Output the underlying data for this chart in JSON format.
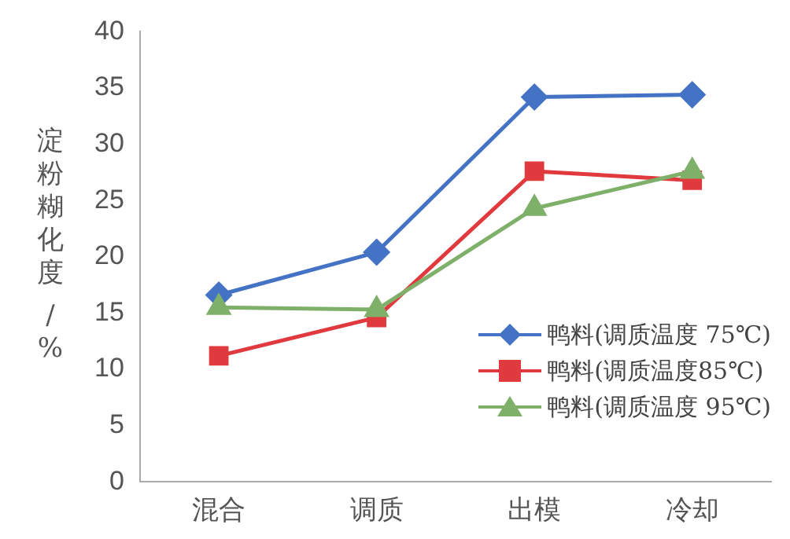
{
  "chart_data": {
    "type": "line",
    "ylabel": "淀粉糊化度 /%",
    "categories": [
      "混合",
      "调质",
      "出模",
      "冷却"
    ],
    "series": [
      {
        "name": "鸭料(调质温度 75℃)",
        "color": "#4472c4",
        "marker": "diamond",
        "values": [
          16.6,
          20.4,
          34.2,
          34.4
        ]
      },
      {
        "name": "鸭料(调质温度85℃)",
        "color": "#e0393e",
        "marker": "square",
        "values": [
          11.2,
          14.6,
          27.6,
          26.8
        ]
      },
      {
        "name": "鸭料(调质温度 95℃)",
        "color": "#7fb069",
        "marker": "triangle",
        "values": [
          15.5,
          15.3,
          24.3,
          27.6
        ]
      }
    ],
    "ylim": [
      0,
      40
    ],
    "yticks": [
      0,
      5,
      10,
      15,
      20,
      25,
      30,
      35,
      40
    ],
    "grid": false,
    "legend": "bottom right",
    "line_style": "solid"
  }
}
